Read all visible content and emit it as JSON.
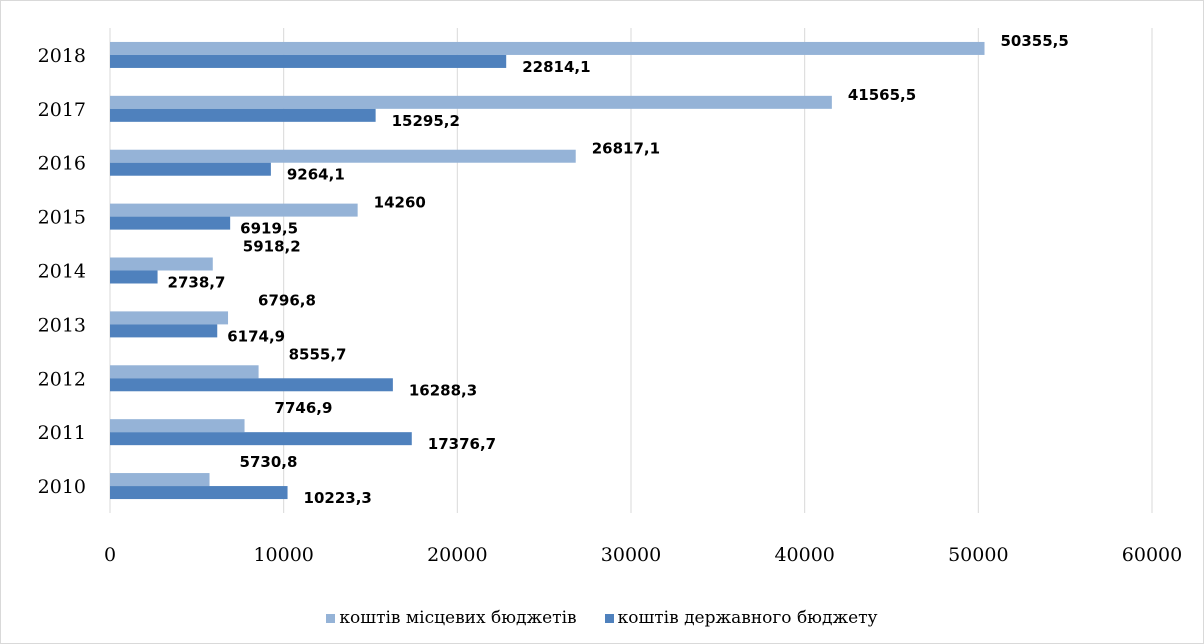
{
  "chart_data": {
    "type": "bar",
    "orientation": "horizontal",
    "categories": [
      "2018",
      "2017",
      "2016",
      "2015",
      "2014",
      "2013",
      "2012",
      "2011",
      "2010"
    ],
    "series": [
      {
        "name": "коштів місцевих бюджетів",
        "color": "#95b3d7",
        "values": [
          50355.5,
          41565.5,
          26817.1,
          14260,
          5918.2,
          6796.8,
          8555.7,
          7746.9,
          5730.8
        ],
        "labels": [
          "50355,5",
          "41565,5",
          "26817,1",
          "14260",
          "5918,2",
          "6796,8",
          "8555,7",
          "7746,9",
          "5730,8"
        ]
      },
      {
        "name": "коштів державного бюджету",
        "color": "#4f81bd",
        "values": [
          22814.1,
          15295.2,
          9264.1,
          6919.5,
          2738.7,
          6174.9,
          16288.3,
          17376.7,
          10223.3
        ],
        "labels": [
          "22814,1",
          "15295,2",
          "9264,1",
          "6919,5",
          "2738,7",
          "6174,9",
          "16288,3",
          "17376,7",
          "10223,3"
        ]
      }
    ],
    "xlim": [
      0,
      60000
    ],
    "x_ticks": [
      "0",
      "10000",
      "20000",
      "30000",
      "40000",
      "50000",
      "60000"
    ],
    "grid": true,
    "legend_position": "bottom"
  }
}
